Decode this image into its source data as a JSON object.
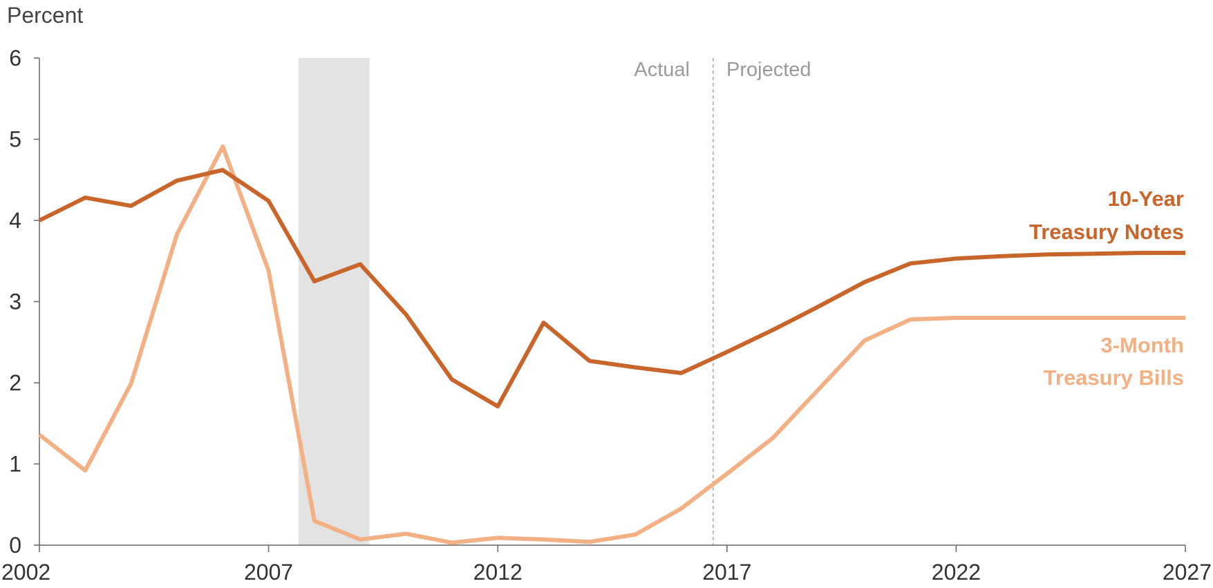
{
  "chart_data": {
    "type": "line",
    "y_unit_label": "Percent",
    "ylim": [
      0,
      6
    ],
    "yticks": [
      "0",
      "1",
      "2",
      "3",
      "4",
      "5",
      "6"
    ],
    "xlim": [
      2002,
      2027
    ],
    "xticks": [
      "2002",
      "2007",
      "2012",
      "2017",
      "2022",
      "2027"
    ],
    "grid": false,
    "shaded_period": {
      "start": 2007.65,
      "end": 2009.2
    },
    "divider": {
      "x": 2016.7,
      "left_label": "Actual",
      "right_label": "Projected"
    },
    "series": [
      {
        "name_line1": "10-Year",
        "name_line2": "Treasury Notes",
        "color": "#c8652a",
        "x": [
          2002,
          2003,
          2004,
          2005,
          2006,
          2007,
          2008,
          2009,
          2010,
          2011,
          2012,
          2013,
          2014,
          2015,
          2016,
          2017,
          2018,
          2019,
          2020,
          2021,
          2022,
          2023,
          2024,
          2025,
          2026,
          2027
        ],
        "values": [
          4.0,
          4.28,
          4.18,
          4.49,
          4.62,
          4.24,
          3.25,
          3.46,
          2.84,
          2.04,
          1.71,
          2.74,
          2.27,
          2.19,
          2.12,
          2.38,
          2.65,
          2.94,
          3.24,
          3.47,
          3.53,
          3.56,
          3.58,
          3.59,
          3.6,
          3.6
        ]
      },
      {
        "name_line1": "3-Month",
        "name_line2": "Treasury Bills",
        "color": "#f2b084",
        "x": [
          2002,
          2003,
          2004,
          2005,
          2006,
          2007,
          2008,
          2009,
          2010,
          2011,
          2012,
          2013,
          2014,
          2015,
          2016,
          2017,
          2018,
          2019,
          2020,
          2021,
          2022,
          2023,
          2024,
          2025,
          2026,
          2027
        ],
        "values": [
          1.36,
          0.92,
          1.99,
          3.83,
          4.91,
          3.38,
          0.3,
          0.07,
          0.14,
          0.03,
          0.09,
          0.07,
          0.04,
          0.13,
          0.45,
          0.88,
          1.32,
          1.92,
          2.52,
          2.78,
          2.8,
          2.8,
          2.8,
          2.8,
          2.8,
          2.8
        ]
      }
    ]
  }
}
